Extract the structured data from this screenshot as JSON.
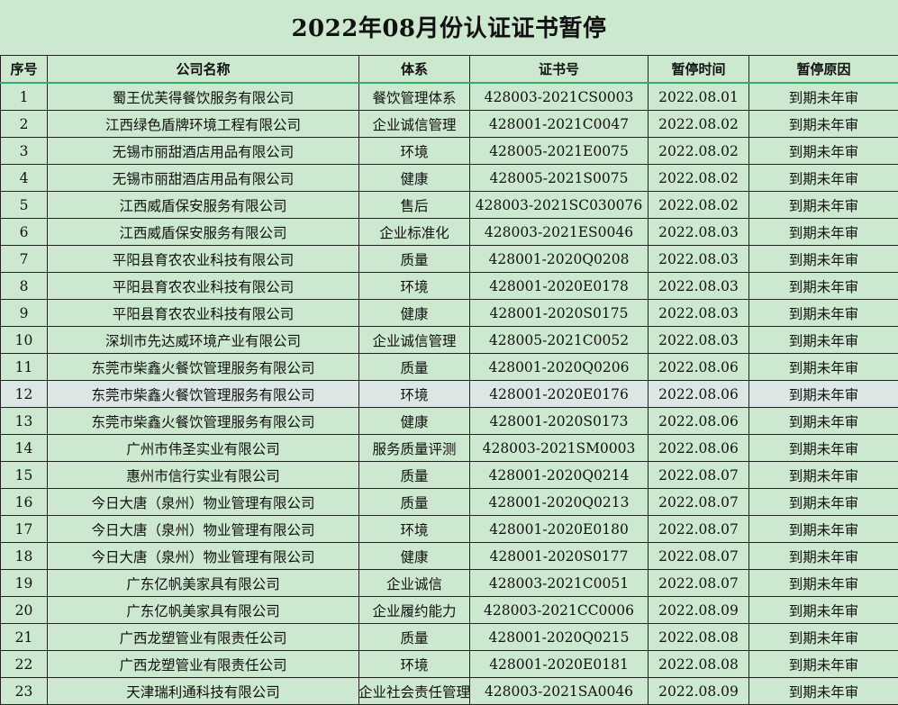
{
  "title": "2022年08月份认证证书暂停",
  "headers": [
    "序号",
    "公司名称",
    "体系",
    "证书号",
    "暂停时间",
    "暂停原因"
  ],
  "highlighted_row": 12,
  "rows": [
    [
      "1",
      "蜀王优芙得餐饮服务有限公司",
      "餐饮管理体系",
      "428003-2021CS0003",
      "2022.08.01",
      "到期未年审"
    ],
    [
      "2",
      "江西绿色盾牌环境工程有限公司",
      "企业诚信管理",
      "428001-2021C0047",
      "2022.08.02",
      "到期未年审"
    ],
    [
      "3",
      "无锡市丽甜酒店用品有限公司",
      "环境",
      "428005-2021E0075",
      "2022.08.02",
      "到期未年审"
    ],
    [
      "4",
      "无锡市丽甜酒店用品有限公司",
      "健康",
      "428005-2021S0075",
      "2022.08.02",
      "到期未年审"
    ],
    [
      "5",
      "江西威盾保安服务有限公司",
      "售后",
      "428003-2021SC030076",
      "2022.08.02",
      "到期未年审"
    ],
    [
      "6",
      "江西威盾保安服务有限公司",
      "企业标准化",
      "428003-2021ES0046",
      "2022.08.03",
      "到期未年审"
    ],
    [
      "7",
      "平阳县育农农业科技有限公司",
      "质量",
      "428001-2020Q0208",
      "2022.08.03",
      "到期未年审"
    ],
    [
      "8",
      "平阳县育农农业科技有限公司",
      "环境",
      "428001-2020E0178",
      "2022.08.03",
      "到期未年审"
    ],
    [
      "9",
      "平阳县育农农业科技有限公司",
      "健康",
      "428001-2020S0175",
      "2022.08.03",
      "到期未年审"
    ],
    [
      "10",
      "深圳市先达威环境产业有限公司",
      "企业诚信管理",
      "428005-2021C0052",
      "2022.08.03",
      "到期未年审"
    ],
    [
      "11",
      "东莞市柴鑫火餐饮管理服务有限公司",
      "质量",
      "428001-2020Q0206",
      "2022.08.06",
      "到期未年审"
    ],
    [
      "12",
      "东莞市柴鑫火餐饮管理服务有限公司",
      "环境",
      "428001-2020E0176",
      "2022.08.06",
      "到期未年审"
    ],
    [
      "13",
      "东莞市柴鑫火餐饮管理服务有限公司",
      "健康",
      "428001-2020S0173",
      "2022.08.06",
      "到期未年审"
    ],
    [
      "14",
      "广州市伟圣实业有限公司",
      "服务质量评测",
      "428003-2021SM0003",
      "2022.08.06",
      "到期未年审"
    ],
    [
      "15",
      "惠州市信行实业有限公司",
      "质量",
      "428001-2020Q0214",
      "2022.08.07",
      "到期未年审"
    ],
    [
      "16",
      "今日大唐（泉州）物业管理有限公司",
      "质量",
      "428001-2020Q0213",
      "2022.08.07",
      "到期未年审"
    ],
    [
      "17",
      "今日大唐（泉州）物业管理有限公司",
      "环境",
      "428001-2020E0180",
      "2022.08.07",
      "到期未年审"
    ],
    [
      "18",
      "今日大唐（泉州）物业管理有限公司",
      "健康",
      "428001-2020S0177",
      "2022.08.07",
      "到期未年审"
    ],
    [
      "19",
      "广东亿帆美家具有限公司",
      "企业诚信",
      "428003-2021C0051",
      "2022.08.07",
      "到期未年审"
    ],
    [
      "20",
      "广东亿帆美家具有限公司",
      "企业履约能力",
      "428003-2021CC0006",
      "2022.08.09",
      "到期未年审"
    ],
    [
      "21",
      "广西龙塑管业有限责任公司",
      "质量",
      "428001-2020Q0215",
      "2022.08.08",
      "到期未年审"
    ],
    [
      "22",
      "广西龙塑管业有限责任公司",
      "环境",
      "428001-2020E0181",
      "2022.08.08",
      "到期未年审"
    ],
    [
      "23",
      "天津瑞利通科技有限公司",
      "企业社会责任管理",
      "428003-2021SA0046",
      "2022.08.09",
      "到期未年审"
    ]
  ]
}
